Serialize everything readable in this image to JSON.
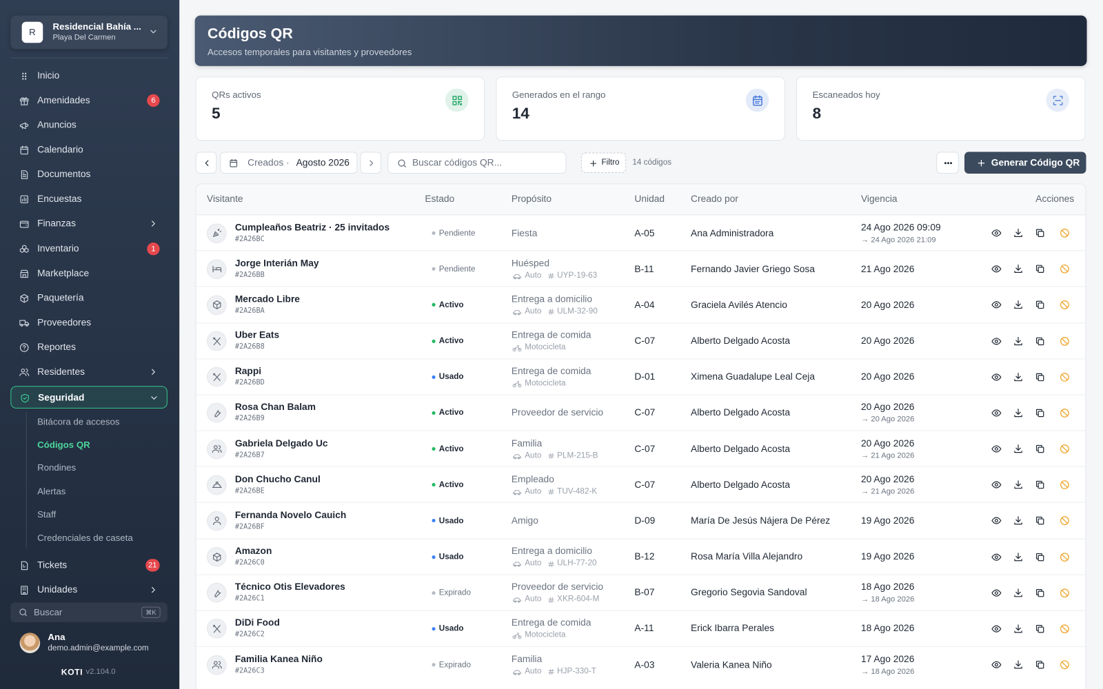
{
  "sidebar": {
    "org_initial": "R",
    "org_name": "Residencial Bahía ...",
    "org_location": "Playa Del Carmen",
    "nav": [
      {
        "label": "Inicio"
      },
      {
        "label": "Amenidades",
        "badge": 6
      },
      {
        "label": "Anuncios"
      },
      {
        "label": "Calendario"
      },
      {
        "label": "Documentos"
      },
      {
        "label": "Encuestas"
      },
      {
        "label": "Finanzas",
        "chevron": "right"
      },
      {
        "label": "Inventario",
        "badge": 1
      },
      {
        "label": "Marketplace"
      },
      {
        "label": "Paquetería"
      },
      {
        "label": "Proveedores"
      },
      {
        "label": "Reportes"
      },
      {
        "label": "Residentes",
        "chevron": "right"
      },
      {
        "label": "Seguridad",
        "chevron": "down",
        "active": true
      }
    ],
    "subnav": [
      {
        "label": "Bitácora de accesos"
      },
      {
        "label": "Códigos QR",
        "active": true
      },
      {
        "label": "Rondines"
      },
      {
        "label": "Alertas"
      },
      {
        "label": "Staff"
      },
      {
        "label": "Credenciales de caseta"
      }
    ],
    "nav_bottom": [
      {
        "label": "Tickets",
        "badge": 21
      },
      {
        "label": "Unidades",
        "chevron": "right"
      }
    ],
    "search": "Buscar",
    "shortcut": "⌘K",
    "user": {
      "name": "Ana",
      "email": "demo.admin@example.com"
    },
    "brand": "KOTI",
    "version": "v2.104.0"
  },
  "header": {
    "title": "Códigos QR",
    "subtitle": "Accesos temporales para visitantes y proveedores"
  },
  "stats": [
    {
      "label": "QRs activos",
      "value": 5,
      "color": "#22a566"
    },
    {
      "label": "Generados en el rango",
      "value": 14,
      "color": "#3b6fd8"
    },
    {
      "label": "Escaneados hoy",
      "value": 8,
      "color": "#4f7fd6"
    }
  ],
  "toolbar": {
    "range_prefix": "Creados ·",
    "range_value": "Agosto 2026",
    "search_placeholder": "Buscar códigos QR...",
    "filter": "Filtro",
    "count": "14 códigos",
    "generate": "Generar Código QR"
  },
  "table": {
    "columns": [
      "Visitante",
      "Estado",
      "Propósito",
      "Unidad",
      "Creado por",
      "Vigencia",
      "Acciones"
    ],
    "rows": [
      {
        "name": "Cumpleaños Beatriz · 25 invitados",
        "code": "#2A26BC",
        "status": "Pendiente",
        "color": "#b4bac3",
        "purpose": "Fiesta",
        "unit": "A-05",
        "creator": "Ana Administradora",
        "date": "24 Ago 2026 09:09",
        "until": "→ 24 Ago 2026 21:09"
      },
      {
        "name": "Jorge Interián May",
        "code": "#2A26BB",
        "status": "Pendiente",
        "color": "#b4bac3",
        "purpose": "Huésped",
        "vehicle": "Auto",
        "plate": "UYP-19-63",
        "unit": "B-11",
        "creator": "Fernando Javier Griego Sosa",
        "date": "21 Ago 2026"
      },
      {
        "name": "Mercado Libre",
        "code": "#2A26BA",
        "status": "Activo",
        "color": "#22b864",
        "purpose": "Entrega a domicilio",
        "vehicle": "Auto",
        "plate": "ULM-32-90",
        "unit": "A-04",
        "creator": "Graciela Avilés Atencio",
        "date": "20 Ago 2026"
      },
      {
        "name": "Uber Eats",
        "code": "#2A26B8",
        "status": "Activo",
        "color": "#22b864",
        "purpose": "Entrega de comida",
        "vehicle": "Motocicleta",
        "unit": "C-07",
        "creator": "Alberto Delgado Acosta",
        "date": "20 Ago 2026"
      },
      {
        "name": "Rappi",
        "code": "#2A26BD",
        "status": "Usado",
        "color": "#3b82f6",
        "purpose": "Entrega de comida",
        "vehicle": "Motocicleta",
        "unit": "D-01",
        "creator": "Ximena Guadalupe Leal Ceja",
        "date": "20 Ago 2026"
      },
      {
        "name": "Rosa Chan Balam",
        "code": "#2A26B9",
        "status": "Activo",
        "color": "#22b864",
        "purpose": "Proveedor de servicio",
        "unit": "C-07",
        "creator": "Alberto Delgado Acosta",
        "date": "20 Ago 2026",
        "until": "→ 20 Ago 2026"
      },
      {
        "name": "Gabriela Delgado Uc",
        "code": "#2A26B7",
        "status": "Activo",
        "color": "#22b864",
        "purpose": "Familia",
        "vehicle": "Auto",
        "plate": "PLM-215-B",
        "unit": "C-07",
        "creator": "Alberto Delgado Acosta",
        "date": "20 Ago 2026",
        "until": "→ 21 Ago 2026"
      },
      {
        "name": "Don Chucho Canul",
        "code": "#2A26BE",
        "status": "Activo",
        "color": "#22b864",
        "purpose": "Empleado",
        "vehicle": "Auto",
        "plate": "TUV-482-K",
        "unit": "C-07",
        "creator": "Alberto Delgado Acosta",
        "date": "20 Ago 2026",
        "until": "→ 21 Ago 2026"
      },
      {
        "name": "Fernanda Novelo Cauich",
        "code": "#2A26BF",
        "status": "Usado",
        "color": "#3b82f6",
        "purpose": "Amigo",
        "unit": "D-09",
        "creator": "María De Jesús Nájera De Pérez",
        "date": "19 Ago 2026"
      },
      {
        "name": "Amazon",
        "code": "#2A26C0",
        "status": "Usado",
        "color": "#3b82f6",
        "purpose": "Entrega a domicilio",
        "vehicle": "Auto",
        "plate": "ULH-77-20",
        "unit": "B-12",
        "creator": "Rosa María Villa Alejandro",
        "date": "19 Ago 2026"
      },
      {
        "name": "Técnico Otis Elevadores",
        "code": "#2A26C1",
        "status": "Expirado",
        "color": "#b4bac3",
        "purpose": "Proveedor de servicio",
        "vehicle": "Auto",
        "plate": "XKR-604-M",
        "unit": "B-07",
        "creator": "Gregorio Segovia Sandoval",
        "date": "18 Ago 2026",
        "until": "→ 18 Ago 2026"
      },
      {
        "name": "DiDi Food",
        "code": "#2A26C2",
        "status": "Usado",
        "color": "#3b82f6",
        "purpose": "Entrega de comida",
        "vehicle": "Motocicleta",
        "unit": "A-11",
        "creator": "Erick Ibarra Perales",
        "date": "18 Ago 2026"
      },
      {
        "name": "Familia Kanea Niño",
        "code": "#2A26C3",
        "status": "Expirado",
        "color": "#b4bac3",
        "purpose": "Familia",
        "vehicle": "Auto",
        "plate": "HJP-330-T",
        "unit": "A-03",
        "creator": "Valeria Kanea Niño",
        "date": "17 Ago 2026",
        "until": "→ 18 Ago 2026"
      }
    ]
  }
}
